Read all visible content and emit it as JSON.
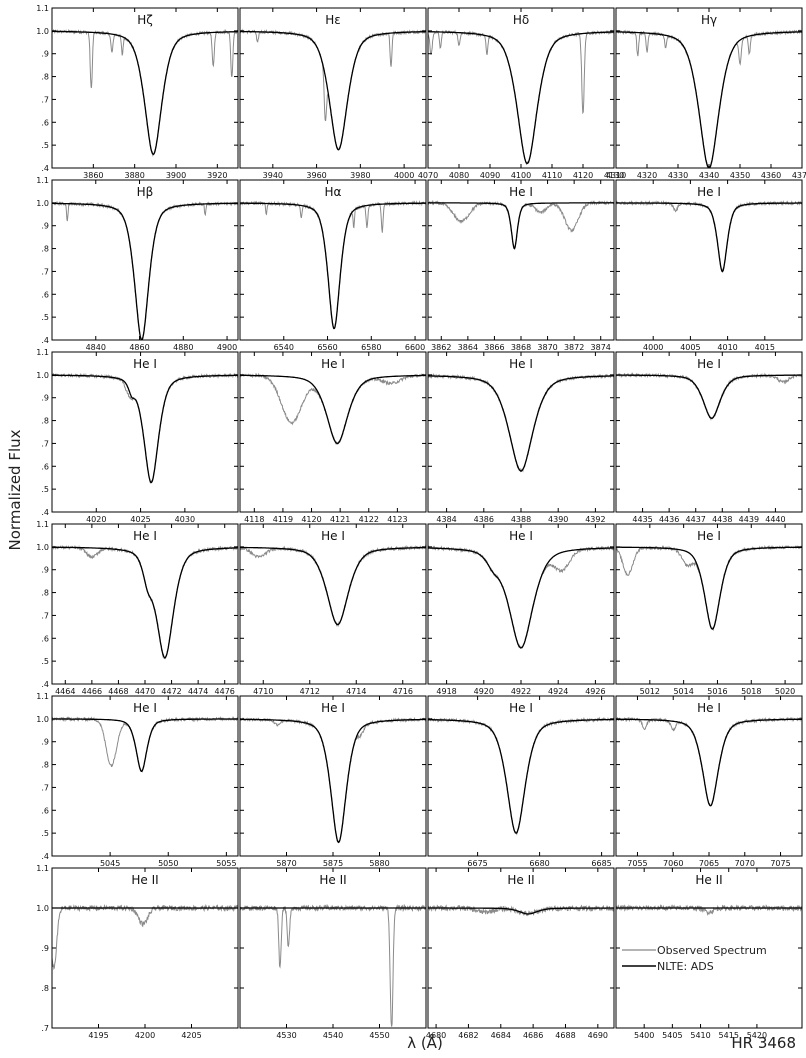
{
  "figure": {
    "ylabel": "Normalized Flux",
    "xlabel": "λ (Å)",
    "star": "HR 3468",
    "legend": {
      "position": "lower-right of last panel",
      "entries": [
        {
          "name": "Observed Spectrum",
          "color": "#888888"
        },
        {
          "name": "NLTE: ADS",
          "color": "#000000"
        }
      ]
    }
  },
  "chart_data": {
    "type": "line",
    "rows": [
      {
        "ylim": [
          0.4,
          1.1
        ],
        "yticks": [
          {
            "v": 0.4,
            "t": ".4"
          },
          {
            "v": 0.5,
            "t": ".5"
          },
          {
            "v": 0.6,
            "t": ".6"
          },
          {
            "v": 0.7,
            "t": ".7"
          },
          {
            "v": 0.8,
            "t": ".8"
          },
          {
            "v": 0.9,
            "t": ".9"
          },
          {
            "v": 1.0,
            "t": "1.0"
          },
          {
            "v": 1.1,
            "t": "1.1"
          }
        ]
      },
      {
        "ylim": [
          0.4,
          1.1
        ],
        "yticks": [
          {
            "v": 0.4,
            "t": ".4"
          },
          {
            "v": 0.5,
            "t": ".5"
          },
          {
            "v": 0.6,
            "t": ".6"
          },
          {
            "v": 0.7,
            "t": ".7"
          },
          {
            "v": 0.8,
            "t": ".8"
          },
          {
            "v": 0.9,
            "t": ".9"
          },
          {
            "v": 1.0,
            "t": "1.0"
          },
          {
            "v": 1.1,
            "t": "1.1"
          }
        ]
      },
      {
        "ylim": [
          0.4,
          1.1
        ],
        "yticks": [
          {
            "v": 0.4,
            "t": ".4"
          },
          {
            "v": 0.5,
            "t": ".5"
          },
          {
            "v": 0.6,
            "t": ".6"
          },
          {
            "v": 0.7,
            "t": ".7"
          },
          {
            "v": 0.8,
            "t": ".8"
          },
          {
            "v": 0.9,
            "t": ".9"
          },
          {
            "v": 1.0,
            "t": "1.0"
          },
          {
            "v": 1.1,
            "t": "1.1"
          }
        ]
      },
      {
        "ylim": [
          0.4,
          1.1
        ],
        "yticks": [
          {
            "v": 0.4,
            "t": ".4"
          },
          {
            "v": 0.5,
            "t": ".5"
          },
          {
            "v": 0.6,
            "t": ".6"
          },
          {
            "v": 0.7,
            "t": ".7"
          },
          {
            "v": 0.8,
            "t": ".8"
          },
          {
            "v": 0.9,
            "t": ".9"
          },
          {
            "v": 1.0,
            "t": "1.0"
          },
          {
            "v": 1.1,
            "t": "1.1"
          }
        ]
      },
      {
        "ylim": [
          0.4,
          1.1
        ],
        "yticks": [
          {
            "v": 0.4,
            "t": ".4"
          },
          {
            "v": 0.5,
            "t": ".5"
          },
          {
            "v": 0.6,
            "t": ".6"
          },
          {
            "v": 0.7,
            "t": ".7"
          },
          {
            "v": 0.8,
            "t": ".8"
          },
          {
            "v": 0.9,
            "t": ".9"
          },
          {
            "v": 1.0,
            "t": "1.0"
          },
          {
            "v": 1.1,
            "t": "1.1"
          }
        ]
      },
      {
        "ylim": [
          0.7,
          1.1
        ],
        "yticks": [
          {
            "v": 0.7,
            "t": ".7"
          },
          {
            "v": 0.8,
            "t": ".8"
          },
          {
            "v": 0.9,
            "t": ".9"
          },
          {
            "v": 1.0,
            "t": "1.0"
          },
          {
            "v": 1.1,
            "t": "1.1"
          }
        ]
      }
    ],
    "panels": [
      {
        "row": 0,
        "col": 0,
        "line": "Hζ",
        "xlim": [
          3840,
          3930
        ],
        "xticks": [
          3860,
          3880,
          3900,
          3920
        ],
        "lines": [
          {
            "c": 3889,
            "d": 0.54,
            "w": 4.5
          }
        ],
        "obs_lines": [
          {
            "c": 3859,
            "d": 0.25,
            "w": 0.5
          },
          {
            "c": 3869,
            "d": 0.08,
            "w": 0.5
          },
          {
            "c": 3874,
            "d": 0.08,
            "w": 0.4
          },
          {
            "c": 3918,
            "d": 0.15,
            "w": 0.5
          },
          {
            "c": 3927,
            "d": 0.2,
            "w": 0.5
          }
        ]
      },
      {
        "row": 0,
        "col": 1,
        "line": "Hε",
        "xlim": [
          3925,
          4010
        ],
        "xticks": [
          3940,
          3960,
          3980,
          4000
        ],
        "lines": [
          {
            "c": 3970,
            "d": 0.52,
            "w": 4.5
          }
        ],
        "obs_lines": [
          {
            "c": 3964,
            "d": 0.2,
            "w": 0.5
          },
          {
            "c": 3994,
            "d": 0.15,
            "w": 0.4
          },
          {
            "c": 3933,
            "d": 0.05,
            "w": 0.4
          }
        ]
      },
      {
        "row": 0,
        "col": 2,
        "line": "Hδ",
        "xlim": [
          4070,
          4130
        ],
        "xticks": [
          4070,
          4080,
          4090,
          4100,
          4110,
          4120,
          4130
        ],
        "lines": [
          {
            "c": 4102,
            "d": 0.58,
            "w": 3.5
          }
        ],
        "obs_lines": [
          {
            "c": 4071,
            "d": 0.1,
            "w": 0.4
          },
          {
            "c": 4074,
            "d": 0.07,
            "w": 0.3
          },
          {
            "c": 4080,
            "d": 0.06,
            "w": 0.3
          },
          {
            "c": 4089,
            "d": 0.08,
            "w": 0.3
          },
          {
            "c": 4120,
            "d": 0.35,
            "w": 0.4
          }
        ]
      },
      {
        "row": 0,
        "col": 3,
        "line": "Hγ",
        "xlim": [
          4310,
          4370
        ],
        "xticks": [
          4310,
          4320,
          4330,
          4340,
          4350,
          4360,
          4370
        ],
        "lines": [
          {
            "c": 4340,
            "d": 0.6,
            "w": 3.5
          }
        ],
        "obs_lines": [
          {
            "c": 4317,
            "d": 0.1,
            "w": 0.3
          },
          {
            "c": 4320,
            "d": 0.08,
            "w": 0.3
          },
          {
            "c": 4326,
            "d": 0.06,
            "w": 0.3
          },
          {
            "c": 4350,
            "d": 0.1,
            "w": 0.4
          },
          {
            "c": 4353,
            "d": 0.08,
            "w": 0.3
          }
        ]
      },
      {
        "row": 1,
        "col": 0,
        "line": "Hβ",
        "xlim": [
          4820,
          4905
        ],
        "xticks": [
          4840,
          4860,
          4880,
          4900
        ],
        "lines": [
          {
            "c": 4861,
            "d": 0.6,
            "w": 3.5
          }
        ],
        "obs_lines": [
          {
            "c": 4827,
            "d": 0.08,
            "w": 0.3
          },
          {
            "c": 4890,
            "d": 0.05,
            "w": 0.3
          }
        ]
      },
      {
        "row": 1,
        "col": 1,
        "line": "Hα",
        "xlim": [
          6520,
          6605
        ],
        "xticks": [
          6540,
          6560,
          6580,
          6600
        ],
        "lines": [
          {
            "c": 6563,
            "d": 0.55,
            "w": 3.0
          }
        ],
        "obs_lines": [
          {
            "c": 6532,
            "d": 0.05,
            "w": 0.3
          },
          {
            "c": 6548,
            "d": 0.06,
            "w": 0.3
          },
          {
            "c": 6572,
            "d": 0.08,
            "w": 0.3
          },
          {
            "c": 6578,
            "d": 0.1,
            "w": 0.4
          },
          {
            "c": 6585,
            "d": 0.12,
            "w": 0.4
          }
        ]
      },
      {
        "row": 1,
        "col": 2,
        "line": "He I",
        "xlim": [
          3861,
          3875
        ],
        "xticks": [
          3862,
          3864,
          3866,
          3868,
          3870,
          3872,
          3874
        ],
        "lines": [
          {
            "c": 3867.5,
            "d": 0.2,
            "w": 0.25
          }
        ],
        "obs_lines": [
          {
            "c": 3863.5,
            "d": 0.08,
            "w": 0.6
          },
          {
            "c": 3871.8,
            "d": 0.12,
            "w": 0.5
          },
          {
            "c": 3869.5,
            "d": 0.04,
            "w": 0.4
          }
        ]
      },
      {
        "row": 1,
        "col": 3,
        "line": "He I",
        "xlim": [
          3995,
          4020
        ],
        "xticks": [
          4000,
          4005,
          4010,
          4015
        ],
        "lines": [
          {
            "c": 4009.3,
            "d": 0.3,
            "w": 0.7
          }
        ],
        "obs_lines": [
          {
            "c": 4003,
            "d": 0.03,
            "w": 0.3
          }
        ]
      },
      {
        "row": 2,
        "col": 0,
        "line": "He I",
        "xlim": [
          4015,
          4036
        ],
        "xticks": [
          4020,
          4025,
          4030
        ],
        "lines": [
          {
            "c": 4026.2,
            "d": 0.47,
            "w": 0.9
          },
          {
            "c": 4024.0,
            "d": 0.05,
            "w": 0.4
          }
        ],
        "obs_lines": [
          {
            "c": 4023.5,
            "d": 0.03,
            "w": 0.3
          }
        ]
      },
      {
        "row": 2,
        "col": 1,
        "line": "He I",
        "xlim": [
          4117.5,
          4124
        ],
        "xticks": [
          4118,
          4119,
          4120,
          4121,
          4122,
          4123
        ],
        "lines": [
          {
            "c": 4120.9,
            "d": 0.3,
            "w": 0.4
          }
        ],
        "obs_lines": [
          {
            "c": 4119.3,
            "d": 0.2,
            "w": 0.35
          },
          {
            "c": 4122.8,
            "d": 0.03,
            "w": 0.3
          }
        ]
      },
      {
        "row": 2,
        "col": 2,
        "line": "He I",
        "xlim": [
          4383,
          4393
        ],
        "xticks": [
          4384,
          4386,
          4388,
          4390,
          4392
        ],
        "lines": [
          {
            "c": 4388,
            "d": 0.42,
            "w": 0.7
          }
        ],
        "obs_lines": []
      },
      {
        "row": 2,
        "col": 3,
        "line": "He I",
        "xlim": [
          4434,
          4441
        ],
        "xticks": [
          4435,
          4436,
          4437,
          4438,
          4439,
          4440
        ],
        "lines": [
          {
            "c": 4437.6,
            "d": 0.19,
            "w": 0.35
          }
        ],
        "obs_lines": [
          {
            "c": 4440.3,
            "d": 0.03,
            "w": 0.2
          }
        ]
      },
      {
        "row": 3,
        "col": 0,
        "line": "He I",
        "xlim": [
          4463,
          4477
        ],
        "xticks": [
          4464,
          4466,
          4468,
          4470,
          4472,
          4474,
          4476
        ],
        "lines": [
          {
            "c": 4471.5,
            "d": 0.48,
            "w": 0.7
          },
          {
            "c": 4470.2,
            "d": 0.1,
            "w": 0.4
          }
        ],
        "obs_lines": [
          {
            "c": 4466,
            "d": 0.04,
            "w": 0.4
          }
        ]
      },
      {
        "row": 3,
        "col": 1,
        "line": "He I",
        "xlim": [
          4709,
          4717
        ],
        "xticks": [
          4710,
          4712,
          4714,
          4716
        ],
        "lines": [
          {
            "c": 4713.2,
            "d": 0.34,
            "w": 0.5
          }
        ],
        "obs_lines": [
          {
            "c": 4709.8,
            "d": 0.04,
            "w": 0.3
          }
        ]
      },
      {
        "row": 3,
        "col": 2,
        "line": "He I",
        "xlim": [
          4917,
          4927
        ],
        "xticks": [
          4918,
          4920,
          4922,
          4924,
          4926
        ],
        "lines": [
          {
            "c": 4922,
            "d": 0.44,
            "w": 0.7
          },
          {
            "c": 4920.5,
            "d": 0.05,
            "w": 0.4
          }
        ],
        "obs_lines": [
          {
            "c": 4924.2,
            "d": 0.08,
            "w": 0.4
          }
        ]
      },
      {
        "row": 3,
        "col": 3,
        "line": "He I",
        "xlim": [
          5010,
          5021
        ],
        "xticks": [
          5012,
          5014,
          5016,
          5018,
          5020
        ],
        "lines": [
          {
            "c": 5015.7,
            "d": 0.36,
            "w": 0.5
          }
        ],
        "obs_lines": [
          {
            "c": 5010.7,
            "d": 0.12,
            "w": 0.3
          },
          {
            "c": 5014.2,
            "d": 0.06,
            "w": 0.3
          }
        ]
      },
      {
        "row": 4,
        "col": 0,
        "line": "He I",
        "xlim": [
          5040,
          5056
        ],
        "xticks": [
          5045,
          5050,
          5055
        ],
        "lines": [
          {
            "c": 5047.7,
            "d": 0.23,
            "w": 0.5
          }
        ],
        "obs_lines": [
          {
            "c": 5045.1,
            "d": 0.2,
            "w": 0.45
          }
        ]
      },
      {
        "row": 4,
        "col": 1,
        "line": "He I",
        "xlim": [
          5865,
          5885
        ],
        "xticks": [
          5870,
          5875,
          5880
        ],
        "lines": [
          {
            "c": 5875.6,
            "d": 0.54,
            "w": 0.9
          }
        ],
        "obs_lines": [
          {
            "c": 5869,
            "d": 0.02,
            "w": 0.3
          },
          {
            "c": 5878,
            "d": 0.03,
            "w": 0.3
          }
        ]
      },
      {
        "row": 4,
        "col": 2,
        "line": "He I",
        "xlim": [
          6671,
          6686
        ],
        "xticks": [
          6675,
          6680,
          6685
        ],
        "lines": [
          {
            "c": 6678.1,
            "d": 0.5,
            "w": 0.8
          }
        ],
        "obs_lines": []
      },
      {
        "row": 4,
        "col": 3,
        "line": "He I",
        "xlim": [
          7052,
          7078
        ],
        "xticks": [
          7055,
          7060,
          7065,
          7070,
          7075
        ],
        "lines": [
          {
            "c": 7065.2,
            "d": 0.38,
            "w": 1.2
          }
        ],
        "obs_lines": [
          {
            "c": 7056,
            "d": 0.04,
            "w": 0.3
          },
          {
            "c": 7060,
            "d": 0.04,
            "w": 0.3
          }
        ]
      },
      {
        "row": 5,
        "col": 0,
        "line": "He II",
        "xlim": [
          4190,
          4210
        ],
        "xticks": [
          4195,
          4200,
          4205
        ],
        "lines": [],
        "obs_lines": [
          {
            "c": 4190.2,
            "d": 0.15,
            "w": 0.3
          },
          {
            "c": 4199.8,
            "d": 0.04,
            "w": 0.5
          }
        ]
      },
      {
        "row": 5,
        "col": 1,
        "line": "He II",
        "xlim": [
          4520,
          4560
        ],
        "xticks": [
          4530,
          4540,
          4550
        ],
        "lines": [],
        "obs_lines": [
          {
            "c": 4528.6,
            "d": 0.15,
            "w": 0.25
          },
          {
            "c": 4530.4,
            "d": 0.1,
            "w": 0.25
          },
          {
            "c": 4552.6,
            "d": 0.3,
            "w": 0.3
          }
        ]
      },
      {
        "row": 5,
        "col": 2,
        "line": "He II",
        "xlim": [
          4679.5,
          4691
        ],
        "xticks": [
          4680,
          4682,
          4684,
          4686,
          4688,
          4690
        ],
        "lines": [
          {
            "c": 4685.7,
            "d": 0.015,
            "w": 0.6
          }
        ],
        "obs_lines": [
          {
            "c": 4683,
            "d": 0.01,
            "w": 0.5
          }
        ]
      },
      {
        "row": 5,
        "col": 3,
        "line": "He II",
        "xlim": [
          5395,
          5428
        ],
        "xticks": [
          5400,
          5405,
          5410,
          5415,
          5420
        ],
        "lines": [],
        "obs_lines": [
          {
            "c": 5411.5,
            "d": 0.01,
            "w": 0.8
          }
        ]
      }
    ]
  }
}
